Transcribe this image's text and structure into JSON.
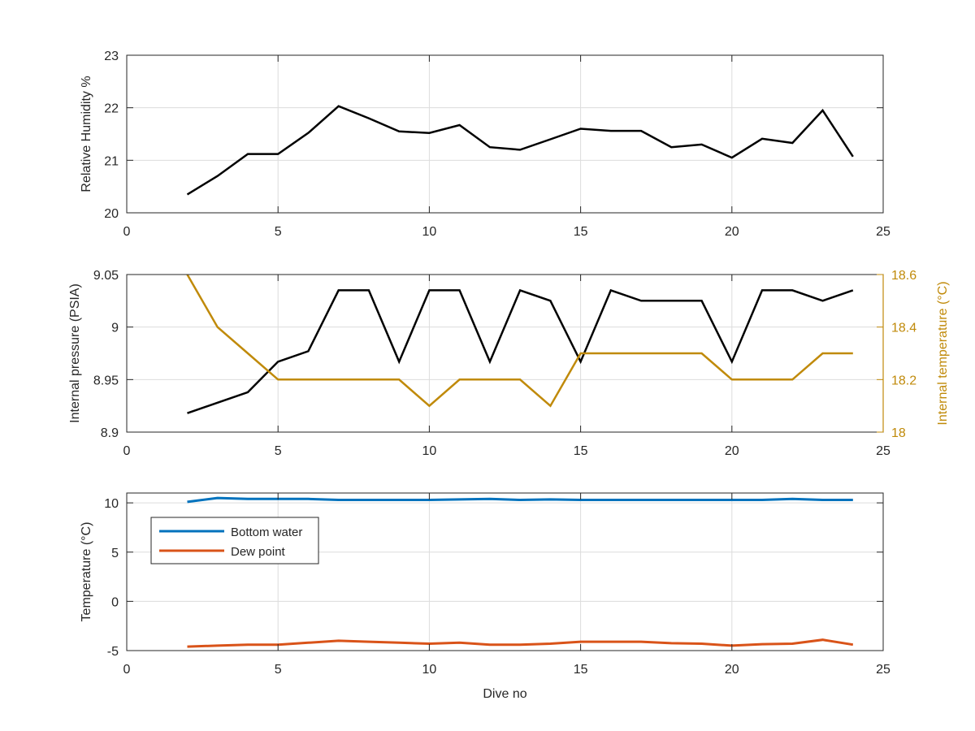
{
  "chart_data": [
    {
      "type": "line",
      "title": "",
      "xlabel": "",
      "ylabel": "Relative Humidity %",
      "xlim": [
        0,
        25
      ],
      "ylim": [
        20,
        23
      ],
      "xticks": [
        "0",
        "5",
        "10",
        "15",
        "20",
        "25"
      ],
      "yticks": [
        "20",
        "21",
        "22",
        "23"
      ],
      "grid": true,
      "series": [
        {
          "name": "",
          "color": "#000000",
          "x": [
            2,
            3,
            4,
            5,
            6,
            7,
            8,
            9,
            10,
            11,
            12,
            13,
            14,
            15,
            16,
            17,
            18,
            19,
            20,
            21,
            22,
            23,
            24
          ],
          "y": [
            20.35,
            20.7,
            21.12,
            21.12,
            21.52,
            22.03,
            21.8,
            21.55,
            21.52,
            21.67,
            21.25,
            21.2,
            21.4,
            21.6,
            21.56,
            21.56,
            21.25,
            21.3,
            21.05,
            21.41,
            21.33,
            21.95,
            21.07
          ]
        }
      ]
    },
    {
      "type": "line",
      "title": "",
      "xlabel": "",
      "ylabel": "Internal pressure (PSIA)",
      "y2label": "Internal temperature (°C)",
      "xlim": [
        0,
        25
      ],
      "ylim": [
        8.9,
        9.05
      ],
      "y2lim": [
        18,
        18.6
      ],
      "xticks": [
        "0",
        "5",
        "10",
        "15",
        "20",
        "25"
      ],
      "yticks": [
        "8.9",
        "8.95",
        "9",
        "9.05"
      ],
      "y2ticks": [
        "18",
        "18.2",
        "18.4",
        "18.6"
      ],
      "grid": true,
      "series": [
        {
          "name": "",
          "axis": "left",
          "color": "#000000",
          "x": [
            2,
            3,
            4,
            5,
            6,
            7,
            8,
            9,
            10,
            11,
            12,
            13,
            14,
            15,
            16,
            17,
            18,
            19,
            20,
            21,
            22,
            23,
            24
          ],
          "y": [
            8.918,
            8.928,
            8.938,
            8.967,
            8.977,
            9.035,
            9.035,
            8.967,
            9.035,
            9.035,
            8.967,
            9.035,
            9.025,
            8.967,
            9.035,
            9.025,
            9.025,
            9.025,
            8.967,
            9.035,
            9.035,
            9.025,
            9.035
          ]
        },
        {
          "name": "",
          "axis": "right",
          "color": "#c08a0a",
          "x": [
            2,
            3,
            4,
            5,
            6,
            7,
            8,
            9,
            10,
            11,
            12,
            13,
            14,
            15,
            16,
            17,
            18,
            19,
            20,
            21,
            22,
            23,
            24
          ],
          "y": [
            18.6,
            18.4,
            18.3,
            18.2,
            18.2,
            18.2,
            18.2,
            18.2,
            18.1,
            18.2,
            18.2,
            18.2,
            18.1,
            18.3,
            18.3,
            18.3,
            18.3,
            18.3,
            18.2,
            18.2,
            18.2,
            18.3,
            18.3
          ]
        }
      ]
    },
    {
      "type": "line",
      "title": "",
      "xlabel": "Dive no",
      "ylabel": "Temperature (°C)",
      "xlim": [
        0,
        25
      ],
      "ylim": [
        -5,
        11
      ],
      "xticks": [
        "0",
        "5",
        "10",
        "15",
        "20",
        "25"
      ],
      "yticks": [
        "-5",
        "0",
        "5",
        "10"
      ],
      "grid": true,
      "legend": "top-left",
      "series": [
        {
          "name": "Bottom water",
          "color": "#0072bd",
          "x": [
            2,
            3,
            4,
            5,
            6,
            7,
            8,
            9,
            10,
            11,
            12,
            13,
            14,
            15,
            16,
            17,
            18,
            19,
            20,
            21,
            22,
            23,
            24
          ],
          "y": [
            10.1,
            10.5,
            10.4,
            10.4,
            10.4,
            10.3,
            10.3,
            10.3,
            10.3,
            10.35,
            10.4,
            10.3,
            10.35,
            10.3,
            10.3,
            10.3,
            10.3,
            10.3,
            10.3,
            10.3,
            10.4,
            10.3,
            10.3
          ]
        },
        {
          "name": "Dew point",
          "color": "#d95319",
          "x": [
            2,
            3,
            4,
            5,
            6,
            7,
            8,
            9,
            10,
            11,
            12,
            13,
            14,
            15,
            16,
            17,
            18,
            19,
            20,
            21,
            22,
            23,
            24
          ],
          "y": [
            -4.6,
            -4.5,
            -4.4,
            -4.4,
            -4.2,
            -4.0,
            -4.1,
            -4.2,
            -4.3,
            -4.2,
            -4.4,
            -4.4,
            -4.3,
            -4.1,
            -4.1,
            -4.1,
            -4.25,
            -4.3,
            -4.5,
            -4.35,
            -4.3,
            -3.9,
            -4.4
          ]
        }
      ]
    }
  ]
}
